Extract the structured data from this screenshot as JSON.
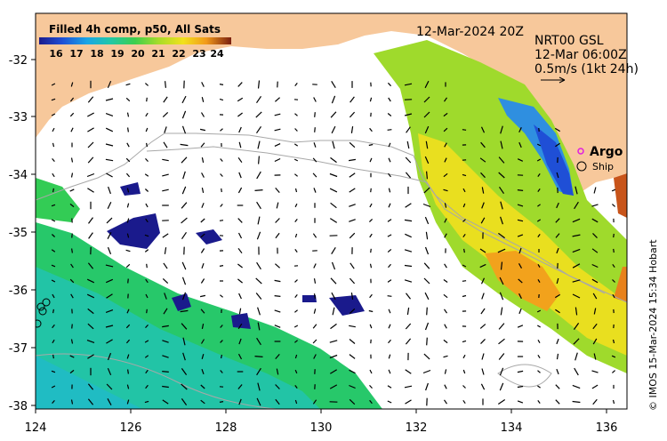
{
  "legend": {
    "title": "Filled 4h comp, p50, All Sats",
    "ticks": [
      "16",
      "17",
      "18",
      "19",
      "20",
      "21",
      "22",
      "23",
      "24"
    ],
    "colors": [
      "#1a1a8c",
      "#1f4fd6",
      "#1aa6e6",
      "#21c7a8",
      "#3ecf4c",
      "#a6dc2a",
      "#f2e11b",
      "#f29a1b",
      "#d2491c",
      "#7a1f10"
    ]
  },
  "map_date": "12-Mar-2024 20Z",
  "current_info": {
    "line1": "NRT00 GSL",
    "line2": "12-Mar 06:00Z",
    "line3": "0.5m/s (1kt 24h)"
  },
  "markers": {
    "argo_label": "Argo",
    "ship_label": "Ship",
    "argo_color": "#e01ee0"
  },
  "axes": {
    "x_ticks": [
      "124",
      "126",
      "128",
      "130",
      "132",
      "134",
      "136"
    ],
    "y_ticks": [
      "-32",
      "-33",
      "-34",
      "-35",
      "-36",
      "-37",
      "-38"
    ]
  },
  "credit": "© IMOS 15-Mar-2024 15:34 Hobart",
  "colors": {
    "land": "#f7c89b",
    "ocean_nodata": "#ffffff",
    "contour": "#a8a8a8"
  }
}
